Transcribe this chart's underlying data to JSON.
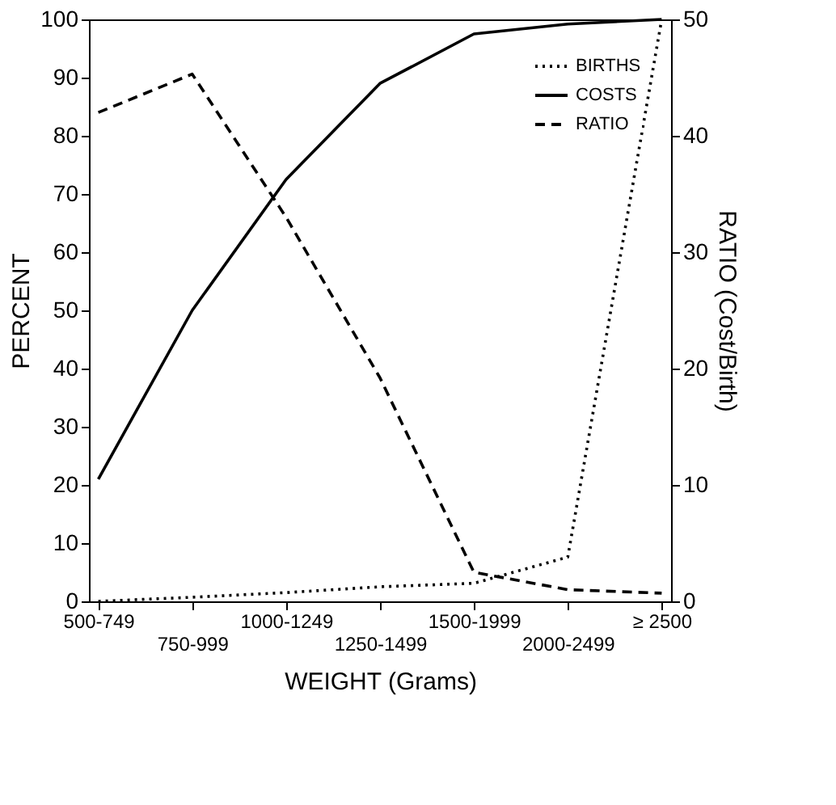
{
  "chart_data": {
    "type": "line",
    "xlabel": "WEIGHT (Grams)",
    "ylabel": "PERCENT",
    "y2label": "RATIO (Cost/Birth)",
    "categories": [
      "500-749",
      "750-999",
      "1000-1249",
      "1250-1499",
      "1500-1999",
      "2000-2499",
      "≥ 2500"
    ],
    "series": [
      {
        "name": "BIRTHS",
        "color": "#000000",
        "line_style": "dotted",
        "values": [
          0,
          0.7,
          1.5,
          2.5,
          3.1,
          7.6,
          100
        ]
      },
      {
        "name": "COSTS",
        "color": "#000000",
        "line_style": "solid",
        "values": [
          21,
          50,
          72.5,
          89,
          97.5,
          99.2,
          100
        ]
      },
      {
        "name": "RATIO",
        "color": "#000000",
        "line_style": "dashed",
        "axis": "y2",
        "values": [
          42,
          45.3,
          33,
          19.2,
          2.5,
          1.0,
          0.7
        ]
      }
    ],
    "ylim": [
      0,
      100
    ],
    "yticks": [
      0,
      10,
      20,
      30,
      40,
      50,
      60,
      70,
      80,
      90,
      100
    ],
    "y2lim": [
      0,
      50
    ],
    "y2ticks": [
      0,
      10,
      20,
      30,
      40,
      50
    ],
    "grid": false,
    "legend": "top right",
    "marker": "none"
  }
}
